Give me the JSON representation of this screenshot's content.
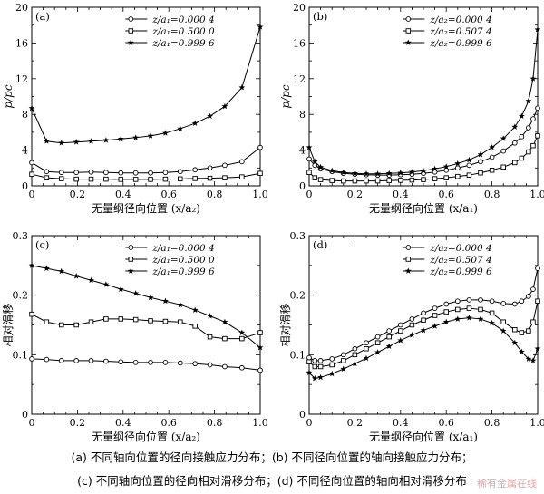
{
  "chart_data": [
    {
      "type": "line",
      "panel_label": "(a)",
      "xlabel": "无量纲径向位置 (x/a₂)",
      "ylabel": "p/pc",
      "xlim": [
        0,
        1.0
      ],
      "ylim": [
        0,
        20
      ],
      "xticks": [
        "0",
        "0.2",
        "0.4",
        "0.6",
        "0.8",
        "1.0"
      ],
      "yticks": [
        "0",
        "4",
        "8",
        "12",
        "16",
        "20"
      ],
      "legend_position": "top-right",
      "series": [
        {
          "name": "z/a₁=0.000 4",
          "marker": "circle",
          "x": [
            0,
            0.065,
            0.13,
            0.195,
            0.26,
            0.325,
            0.39,
            0.455,
            0.52,
            0.585,
            0.65,
            0.715,
            0.78,
            0.845,
            0.92,
            1.0
          ],
          "y": [
            2.6,
            1.6,
            1.5,
            1.5,
            1.55,
            1.5,
            1.45,
            1.45,
            1.45,
            1.5,
            1.6,
            1.8,
            2.0,
            2.3,
            2.7,
            4.3
          ]
        },
        {
          "name": "z/a₁=0.500 0",
          "marker": "square",
          "x": [
            0,
            0.065,
            0.13,
            0.195,
            0.26,
            0.325,
            0.39,
            0.455,
            0.52,
            0.585,
            0.65,
            0.715,
            0.78,
            0.845,
            0.92,
            1.0
          ],
          "y": [
            1.3,
            0.9,
            0.8,
            0.75,
            0.75,
            0.75,
            0.72,
            0.72,
            0.72,
            0.75,
            0.78,
            0.82,
            0.85,
            0.9,
            1.0,
            1.4
          ]
        },
        {
          "name": "z/a₁=0.999 6",
          "marker": "star",
          "x": [
            0,
            0.065,
            0.13,
            0.195,
            0.26,
            0.325,
            0.39,
            0.455,
            0.52,
            0.585,
            0.65,
            0.715,
            0.78,
            0.845,
            0.92,
            1.0
          ],
          "y": [
            8.7,
            5.0,
            4.8,
            4.9,
            5.0,
            5.1,
            5.25,
            5.4,
            5.6,
            5.9,
            6.4,
            7.0,
            7.8,
            8.9,
            11.0,
            17.8
          ]
        }
      ]
    },
    {
      "type": "line",
      "panel_label": "(b)",
      "xlabel": "无量纲径向位置 (x/a₁)",
      "ylabel": "p/pc",
      "xlim": [
        0,
        1.0
      ],
      "ylim": [
        0,
        20
      ],
      "xticks": [
        "0",
        "0.2",
        "0.4",
        "0.6",
        "0.8",
        "1.0"
      ],
      "yticks": [
        "0",
        "4",
        "8",
        "12",
        "16",
        "20"
      ],
      "legend_position": "top-right",
      "series": [
        {
          "name": "z/a₂=0.000 4",
          "marker": "circle",
          "x": [
            0,
            0.025,
            0.05,
            0.1,
            0.15,
            0.2,
            0.25,
            0.3,
            0.35,
            0.4,
            0.45,
            0.5,
            0.55,
            0.6,
            0.65,
            0.7,
            0.75,
            0.8,
            0.85,
            0.9,
            0.93,
            0.96,
            0.98,
            1.0
          ],
          "y": [
            3.0,
            2.3,
            1.9,
            1.6,
            1.4,
            1.3,
            1.25,
            1.2,
            1.2,
            1.25,
            1.3,
            1.4,
            1.55,
            1.75,
            2.0,
            2.3,
            2.7,
            3.2,
            3.9,
            4.8,
            5.5,
            6.5,
            7.5,
            8.7
          ]
        },
        {
          "name": "z/a₂=0.507 4",
          "marker": "square",
          "x": [
            0,
            0.025,
            0.05,
            0.1,
            0.15,
            0.2,
            0.25,
            0.3,
            0.35,
            0.4,
            0.45,
            0.5,
            0.55,
            0.6,
            0.65,
            0.7,
            0.75,
            0.8,
            0.85,
            0.9,
            0.93,
            0.96,
            0.98,
            1.0
          ],
          "y": [
            1.5,
            0.9,
            0.7,
            0.6,
            0.55,
            0.55,
            0.55,
            0.55,
            0.6,
            0.62,
            0.65,
            0.7,
            0.8,
            0.9,
            1.05,
            1.2,
            1.45,
            1.75,
            2.1,
            2.6,
            3.1,
            3.8,
            4.5,
            5.6
          ]
        },
        {
          "name": "z/a₂=0.999 6",
          "marker": "star",
          "x": [
            0,
            0.025,
            0.05,
            0.1,
            0.15,
            0.2,
            0.25,
            0.3,
            0.35,
            0.4,
            0.45,
            0.5,
            0.55,
            0.6,
            0.65,
            0.7,
            0.75,
            0.8,
            0.85,
            0.9,
            0.93,
            0.96,
            0.98,
            1.0
          ],
          "y": [
            4.3,
            2.7,
            2.1,
            1.7,
            1.5,
            1.4,
            1.35,
            1.35,
            1.4,
            1.45,
            1.55,
            1.7,
            1.9,
            2.15,
            2.5,
            2.9,
            3.5,
            4.3,
            5.3,
            6.6,
            7.8,
            9.5,
            12.0,
            17.5
          ]
        }
      ]
    },
    {
      "type": "line",
      "panel_label": "(c)",
      "xlabel": "无量纲径向位置 (x/a₂)",
      "ylabel": "相对滑移",
      "xlim": [
        0,
        1.0
      ],
      "ylim": [
        0,
        0.3
      ],
      "xticks": [
        "0",
        "0.2",
        "0.4",
        "0.6",
        "0.8",
        "1.0"
      ],
      "yticks": [
        "0",
        "0.1",
        "0.2",
        "0.3"
      ],
      "legend_position": "top-right",
      "series": [
        {
          "name": "z/a₁=0.000 4",
          "marker": "circle",
          "x": [
            0,
            0.065,
            0.13,
            0.195,
            0.26,
            0.325,
            0.39,
            0.455,
            0.52,
            0.585,
            0.65,
            0.715,
            0.78,
            0.845,
            0.92,
            1.0
          ],
          "y": [
            0.093,
            0.092,
            0.09,
            0.09,
            0.09,
            0.089,
            0.088,
            0.087,
            0.087,
            0.087,
            0.086,
            0.085,
            0.083,
            0.08,
            0.078,
            0.074
          ]
        },
        {
          "name": "z/a₁=0.500 0",
          "marker": "square",
          "x": [
            0,
            0.065,
            0.13,
            0.195,
            0.26,
            0.325,
            0.39,
            0.455,
            0.52,
            0.585,
            0.65,
            0.715,
            0.78,
            0.845,
            0.92,
            1.0
          ],
          "y": [
            0.168,
            0.155,
            0.15,
            0.15,
            0.155,
            0.16,
            0.16,
            0.159,
            0.157,
            0.156,
            0.155,
            0.148,
            0.13,
            0.127,
            0.127,
            0.137
          ]
        },
        {
          "name": "z/a₁=0.999 6",
          "marker": "star",
          "x": [
            0,
            0.065,
            0.13,
            0.195,
            0.26,
            0.325,
            0.39,
            0.455,
            0.52,
            0.585,
            0.65,
            0.715,
            0.78,
            0.845,
            0.92,
            1.0
          ],
          "y": [
            0.25,
            0.245,
            0.24,
            0.232,
            0.225,
            0.218,
            0.21,
            0.203,
            0.196,
            0.19,
            0.184,
            0.175,
            0.165,
            0.155,
            0.137,
            0.112
          ]
        }
      ]
    },
    {
      "type": "line",
      "panel_label": "(d)",
      "xlabel": "无量纲径向位置 (x/a₁)",
      "ylabel": "相对滑移",
      "xlim": [
        0,
        1.0
      ],
      "ylim": [
        0,
        0.3
      ],
      "xticks": [
        "0",
        "0.2",
        "0.4",
        "0.6",
        "0.8",
        "1.0"
      ],
      "yticks": [
        "0",
        "0.1",
        "0.2",
        "0.3"
      ],
      "legend_position": "top-right",
      "series": [
        {
          "name": "z/a₂=0.000 4",
          "marker": "circle",
          "x": [
            0,
            0.025,
            0.05,
            0.1,
            0.15,
            0.2,
            0.25,
            0.3,
            0.35,
            0.4,
            0.45,
            0.5,
            0.55,
            0.6,
            0.65,
            0.7,
            0.75,
            0.8,
            0.85,
            0.9,
            0.93,
            0.96,
            0.98,
            1.0
          ],
          "y": [
            0.095,
            0.09,
            0.09,
            0.093,
            0.1,
            0.11,
            0.12,
            0.13,
            0.14,
            0.15,
            0.16,
            0.17,
            0.178,
            0.185,
            0.19,
            0.192,
            0.192,
            0.19,
            0.186,
            0.185,
            0.19,
            0.198,
            0.21,
            0.245
          ]
        },
        {
          "name": "z/a₂=0.507 4",
          "marker": "square",
          "x": [
            0,
            0.025,
            0.05,
            0.1,
            0.15,
            0.2,
            0.25,
            0.3,
            0.35,
            0.4,
            0.45,
            0.5,
            0.55,
            0.6,
            0.65,
            0.7,
            0.75,
            0.8,
            0.85,
            0.9,
            0.93,
            0.96,
            0.98,
            1.0
          ],
          "y": [
            0.088,
            0.08,
            0.08,
            0.083,
            0.09,
            0.1,
            0.11,
            0.12,
            0.13,
            0.14,
            0.15,
            0.158,
            0.166,
            0.172,
            0.176,
            0.178,
            0.176,
            0.17,
            0.155,
            0.142,
            0.137,
            0.14,
            0.155,
            0.19
          ]
        },
        {
          "name": "z/a₂=0.999 6",
          "marker": "star",
          "x": [
            0,
            0.025,
            0.05,
            0.1,
            0.15,
            0.2,
            0.25,
            0.3,
            0.35,
            0.4,
            0.45,
            0.5,
            0.55,
            0.6,
            0.65,
            0.7,
            0.75,
            0.8,
            0.85,
            0.9,
            0.93,
            0.96,
            0.98,
            1.0
          ],
          "y": [
            0.07,
            0.06,
            0.062,
            0.068,
            0.076,
            0.085,
            0.094,
            0.104,
            0.114,
            0.124,
            0.133,
            0.141,
            0.148,
            0.155,
            0.16,
            0.162,
            0.16,
            0.153,
            0.14,
            0.12,
            0.105,
            0.093,
            0.09,
            0.11
          ]
        }
      ]
    }
  ],
  "caption": {
    "line1": "(a) 不同轴向位置的径向接触应力分布；(b) 不同径向位置的轴向接触应力分布；",
    "line2": "(c) 不同轴向位置的径向相对滑移分布；(d) 不同径向位置的轴向相对滑移分布"
  },
  "watermark": "稀有金属在线"
}
